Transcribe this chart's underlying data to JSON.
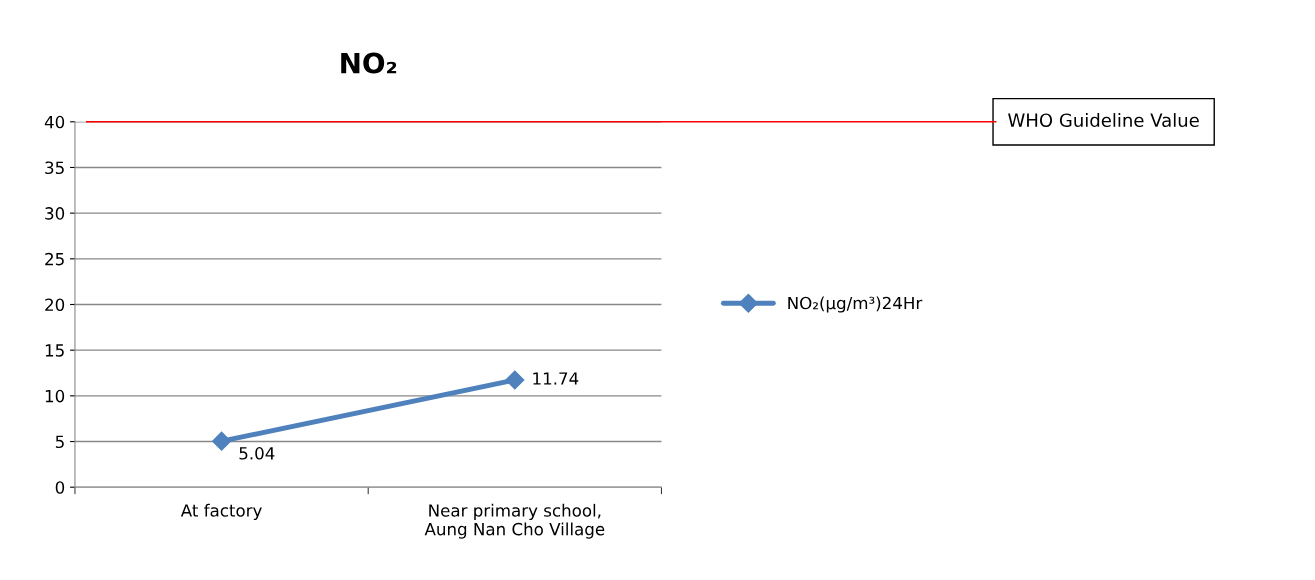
{
  "chart_data": {
    "type": "line",
    "title": "NO₂",
    "categories": [
      "At factory",
      "Near primary school,\nAung Nan Cho Village"
    ],
    "series": [
      {
        "name": "NO₂(µg/m³)24Hr",
        "color": "#4f81bd",
        "values": [
          5.04,
          11.74
        ]
      }
    ],
    "ylim": [
      0,
      40
    ],
    "yticks": [
      0,
      5,
      10,
      15,
      20,
      25,
      30,
      35,
      40
    ],
    "ref_lines": [
      {
        "axis": "y",
        "value": 40,
        "label": "WHO Guideline Value",
        "color": "#ff0000"
      }
    ],
    "data_labels": true,
    "grid": "y",
    "legend": "right",
    "marker": "diamond",
    "line_style": "solid"
  }
}
